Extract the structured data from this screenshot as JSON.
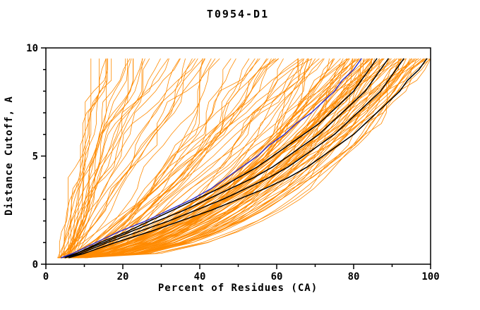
{
  "page": {
    "background": "#FFFFFF"
  },
  "chart_data": {
    "type": "line",
    "title": "T0954-D1",
    "xlabel": "Percent of Residues (CA)",
    "ylabel": "Distance Cutoff, A",
    "xlim": [
      0,
      100
    ],
    "ylim": [
      0,
      10
    ],
    "x_major_ticks": [
      0,
      20,
      40,
      60,
      80,
      100
    ],
    "x_minor_ticks": [
      10,
      30,
      50,
      70,
      90
    ],
    "y_major_ticks": [
      0,
      5,
      10
    ],
    "y_minor_ticks": [
      1,
      2,
      3,
      4,
      6,
      7,
      8,
      9
    ],
    "grid": false,
    "legend": "none",
    "colors": {
      "ensemble": "#FF8A00",
      "highlight": "#000000",
      "reference": "#2A2ACC",
      "axes": "#000000"
    },
    "cutoffs": [
      0.3,
      0.5,
      1.0,
      1.5,
      2.0,
      2.5,
      3.0,
      3.5,
      4.0,
      4.5,
      5.0,
      5.5,
      6.0,
      6.5,
      7.0,
      7.5,
      8.0,
      8.5,
      9.0,
      9.5
    ],
    "series": [
      {
        "name": "highlight-model-1",
        "color": "#000000",
        "width": 1.5,
        "points": [
          [
            0.3,
            6
          ],
          [
            0.5,
            10
          ],
          [
            1,
            18
          ],
          [
            1.5,
            27
          ],
          [
            2,
            35
          ],
          [
            2.5,
            43
          ],
          [
            3,
            50
          ],
          [
            3.5,
            57
          ],
          [
            4,
            63
          ],
          [
            4.5,
            68
          ],
          [
            5,
            72
          ],
          [
            5.5,
            76
          ],
          [
            6,
            80
          ],
          [
            6.5,
            83
          ],
          [
            7,
            86
          ],
          [
            7.5,
            89
          ],
          [
            8,
            92
          ],
          [
            8.5,
            94
          ],
          [
            9,
            97
          ],
          [
            9.5,
            99
          ]
        ]
      },
      {
        "name": "highlight-model-2",
        "color": "#000000",
        "width": 1.5,
        "points": [
          [
            0.3,
            5
          ],
          [
            0.5,
            9
          ],
          [
            1,
            16
          ],
          [
            1.5,
            24
          ],
          [
            2,
            32
          ],
          [
            2.5,
            39
          ],
          [
            3,
            46
          ],
          [
            3.5,
            52
          ],
          [
            4,
            58
          ],
          [
            4.5,
            63
          ],
          [
            5,
            67
          ],
          [
            5.5,
            71
          ],
          [
            6,
            75
          ],
          [
            6.5,
            78
          ],
          [
            7,
            81
          ],
          [
            7.5,
            84
          ],
          [
            8,
            87
          ],
          [
            8.5,
            89
          ],
          [
            9,
            91
          ],
          [
            9.5,
            93
          ]
        ]
      },
      {
        "name": "highlight-model-3",
        "color": "#000000",
        "width": 1.5,
        "points": [
          [
            0.3,
            5
          ],
          [
            0.5,
            8
          ],
          [
            1,
            15
          ],
          [
            1.5,
            22
          ],
          [
            2,
            29
          ],
          [
            2.5,
            36
          ],
          [
            3,
            42
          ],
          [
            3.5,
            48
          ],
          [
            4,
            54
          ],
          [
            4.5,
            59
          ],
          [
            5,
            63
          ],
          [
            5.5,
            67
          ],
          [
            6,
            71
          ],
          [
            6.5,
            74
          ],
          [
            7,
            77
          ],
          [
            7.5,
            80
          ],
          [
            8,
            83
          ],
          [
            8.5,
            85
          ],
          [
            9,
            87
          ],
          [
            9.5,
            89
          ]
        ]
      },
      {
        "name": "highlight-model-4",
        "color": "#000000",
        "width": 1.5,
        "points": [
          [
            0.3,
            4
          ],
          [
            0.5,
            8
          ],
          [
            1,
            14
          ],
          [
            1.5,
            21
          ],
          [
            2,
            27
          ],
          [
            2.5,
            33
          ],
          [
            3,
            39
          ],
          [
            3.5,
            45
          ],
          [
            4,
            50
          ],
          [
            4.5,
            55
          ],
          [
            5,
            59
          ],
          [
            5.5,
            63
          ],
          [
            6,
            67
          ],
          [
            6.5,
            71
          ],
          [
            7,
            74
          ],
          [
            7.5,
            77
          ],
          [
            8,
            80
          ],
          [
            8.5,
            82
          ],
          [
            9,
            84
          ],
          [
            9.5,
            86
          ]
        ]
      },
      {
        "name": "reference-model",
        "color": "#2A2ACC",
        "width": 1.4,
        "points": [
          [
            0.3,
            4
          ],
          [
            0.5,
            7
          ],
          [
            1,
            13
          ],
          [
            1.5,
            19
          ],
          [
            2,
            26
          ],
          [
            2.5,
            32
          ],
          [
            3,
            38
          ],
          [
            3.5,
            43
          ],
          [
            4,
            47
          ],
          [
            4.5,
            51
          ],
          [
            5,
            55
          ],
          [
            5.5,
            58
          ],
          [
            6,
            62
          ],
          [
            6.5,
            65
          ],
          [
            7,
            69
          ],
          [
            7.5,
            72
          ],
          [
            8,
            75
          ],
          [
            8.5,
            77
          ],
          [
            9,
            80
          ],
          [
            9.5,
            82
          ]
        ]
      }
    ],
    "ensemble": {
      "note": "Cloud of per-model GDT curves (percent of CA residues under each distance cutoff); values estimated from plot",
      "color": "#FF8A00",
      "stroke_width": 0.8,
      "seed": 20180954,
      "groups": [
        {
          "name": "good-models",
          "count": 80,
          "start_min": 3,
          "start_max": 11,
          "end_min": 62,
          "end_max": 100,
          "shape_min": 0.35,
          "shape_max": 0.65,
          "end_bias": 0.55,
          "noise": 2.2
        },
        {
          "name": "mid-models",
          "count": 26,
          "start_min": 3,
          "start_max": 10,
          "end_min": 38,
          "end_max": 68,
          "shape_min": 0.45,
          "shape_max": 0.9,
          "end_bias": 1.0,
          "noise": 2.6
        },
        {
          "name": "poor-models",
          "count": 29,
          "start_min": 3,
          "start_max": 8,
          "end_min": 9,
          "end_max": 42,
          "shape_min": 0.6,
          "shape_max": 1.5,
          "end_bias": 1.0,
          "noise": 2.6
        }
      ]
    }
  }
}
